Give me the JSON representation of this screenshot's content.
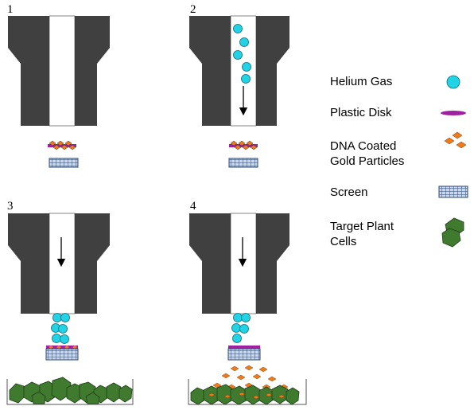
{
  "panels": [
    {
      "number": "1",
      "stage": "at-rest"
    },
    {
      "number": "2",
      "stage": "helium-flowing"
    },
    {
      "number": "3",
      "stage": "disk-at-screen"
    },
    {
      "number": "4",
      "stage": "particles-released"
    }
  ],
  "legend": [
    {
      "key": "helium",
      "label": "Helium Gas",
      "icon": "helium-bubble-icon"
    },
    {
      "key": "disk",
      "label": "Plastic Disk",
      "icon": "plastic-disk-icon"
    },
    {
      "key": "gold",
      "label_lines": [
        "DNA Coated",
        "Gold Particles"
      ],
      "icon": "gold-particle-icon"
    },
    {
      "key": "screen",
      "label": "Screen",
      "icon": "screen-mesh-icon"
    },
    {
      "key": "cells",
      "label_lines": [
        "Target Plant",
        "Cells"
      ],
      "icon": "plant-cell-icon"
    }
  ],
  "colors": {
    "barrel": "#404040",
    "bore": "#ffffff",
    "helium": "#22d3e6",
    "disk": "#a020a0",
    "gold": "#ee7a1c",
    "screen": "#3a5b8a",
    "cells": "#3f7a2e",
    "cells_dark": "#1f3f18"
  }
}
